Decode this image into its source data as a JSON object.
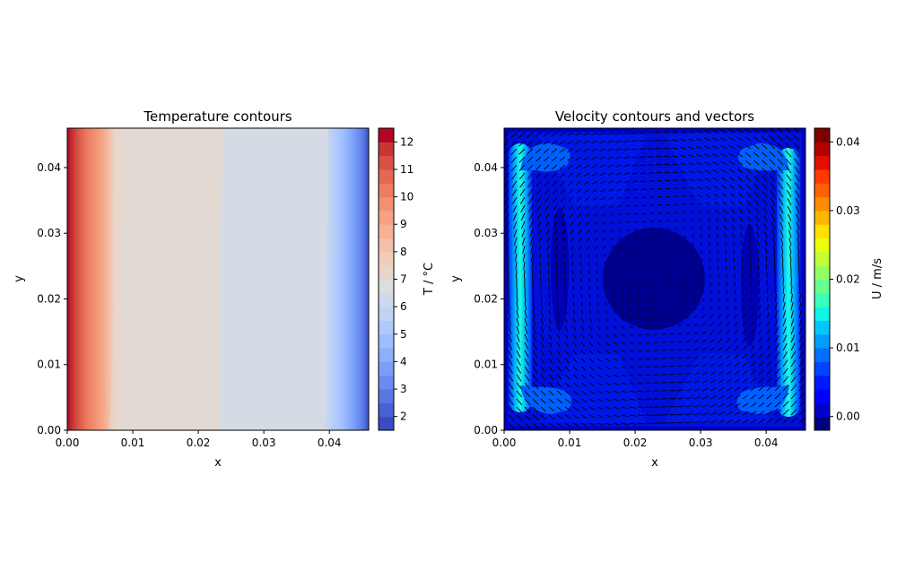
{
  "chart_data": [
    {
      "type": "heatmap",
      "title": "Temperature contours",
      "xlabel": "x",
      "ylabel": "y",
      "xlim": [
        0.0,
        0.046
      ],
      "ylim": [
        0.0,
        0.046
      ],
      "xticks": [
        "0.00",
        "0.01",
        "0.02",
        "0.03",
        "0.04"
      ],
      "yticks": [
        "0.00",
        "0.01",
        "0.02",
        "0.03",
        "0.04"
      ],
      "colorbar": {
        "label": "T / °C",
        "range": [
          1.5,
          12.5
        ],
        "ticks": [
          "2",
          "3",
          "4",
          "5",
          "6",
          "7",
          "8",
          "9",
          "10",
          "11",
          "12"
        ],
        "colormap": "coolwarm",
        "levels": 22
      },
      "field": {
        "description_x_profile": [
          {
            "x": 0.0,
            "T": 12.3
          },
          {
            "x": 0.002,
            "T": 10.0
          },
          {
            "x": 0.004,
            "T": 8.5
          },
          {
            "x": 0.007,
            "T": 7.5
          },
          {
            "x": 0.023,
            "T": 7.3
          },
          {
            "x": 0.024,
            "T": 6.9
          },
          {
            "x": 0.037,
            "T": 6.6
          },
          {
            "x": 0.04,
            "T": 5.0
          },
          {
            "x": 0.043,
            "T": 3.5
          },
          {
            "x": 0.046,
            "T": 1.8
          }
        ]
      }
    },
    {
      "type": "heatmap",
      "title": "Velocity contours and vectors",
      "xlabel": "x",
      "ylabel": "y",
      "xlim": [
        0.0,
        0.046
      ],
      "ylim": [
        0.0,
        0.046
      ],
      "xticks": [
        "0.00",
        "0.01",
        "0.02",
        "0.03",
        "0.04"
      ],
      "yticks": [
        "0.00",
        "0.01",
        "0.02",
        "0.03",
        "0.04"
      ],
      "colorbar": {
        "label": "U / m/s",
        "range": [
          -0.002,
          0.042
        ],
        "ticks": [
          "0.00",
          "0.01",
          "0.02",
          "0.03",
          "0.04"
        ],
        "colormap": "jet",
        "levels": 22
      },
      "features": {
        "left_jet": {
          "x": 0.0025,
          "peak_speed": 0.0145
        },
        "right_jet": {
          "x": 0.0435,
          "peak_speed": 0.0145
        },
        "center_vortex_core": {
          "x": 0.023,
          "y": 0.023,
          "speed": 0.0
        }
      }
    }
  ]
}
